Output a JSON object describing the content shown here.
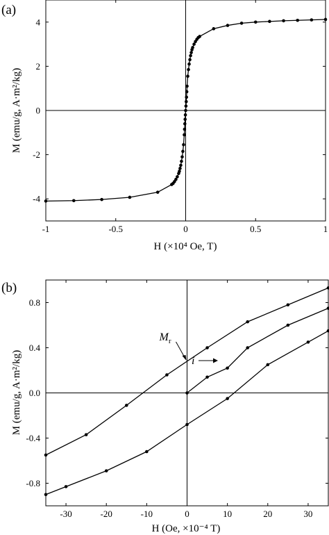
{
  "chart_data": [
    {
      "type": "line",
      "panel_label": "(a)",
      "xlabel": "H (×10⁴ Oe, T)",
      "ylabel": "M (emu/g,  A·m²/kg)",
      "xlim": [
        -1,
        1
      ],
      "ylim": [
        -5,
        5
      ],
      "x_ticks": [
        -1,
        -0.5,
        0,
        0.5,
        1
      ],
      "x_tick_labels": [
        "-1",
        "-0.5",
        "0",
        "0.5",
        "1"
      ],
      "y_ticks": [
        -4,
        -2,
        0,
        2,
        4
      ],
      "y_tick_labels": [
        "-4",
        "-2",
        "0",
        "2",
        "4"
      ],
      "grid": false,
      "series": [
        {
          "x": [
            -1.0,
            -0.8,
            -0.6,
            -0.4,
            -0.2,
            -0.1,
            -0.09,
            -0.08,
            -0.07,
            -0.06,
            -0.05,
            -0.045,
            -0.04,
            -0.035,
            -0.03,
            -0.025,
            -0.02,
            -0.015,
            -0.01,
            -0.008,
            -0.006,
            -0.004,
            -0.002,
            0.0,
            0.002,
            0.004,
            0.006,
            0.008,
            0.01,
            0.015,
            0.02,
            0.025,
            0.03,
            0.035,
            0.04,
            0.045,
            0.05,
            0.06,
            0.07,
            0.08,
            0.09,
            0.1,
            0.2,
            0.3,
            0.4,
            0.5,
            0.6,
            0.7,
            0.8,
            0.9,
            1.0
          ],
          "y": [
            -4.1,
            -4.08,
            -4.03,
            -3.93,
            -3.7,
            -3.35,
            -3.3,
            -3.22,
            -3.12,
            -3.0,
            -2.85,
            -2.75,
            -2.62,
            -2.48,
            -2.3,
            -2.1,
            -1.85,
            -1.55,
            -1.1,
            -0.85,
            -0.6,
            -0.4,
            -0.2,
            0.0,
            0.2,
            0.4,
            0.6,
            0.85,
            1.1,
            1.55,
            1.85,
            2.1,
            2.3,
            2.48,
            2.62,
            2.75,
            2.85,
            3.0,
            3.12,
            3.22,
            3.3,
            3.35,
            3.7,
            3.85,
            3.95,
            4.0,
            4.03,
            4.06,
            4.08,
            4.1,
            4.12
          ]
        }
      ]
    },
    {
      "type": "line",
      "panel_label": "(b)",
      "xlabel": "H (Oe, ×10⁻⁴ T)",
      "ylabel": "M (emu/g,  A·m²/kg)",
      "xlim": [
        -35,
        35
      ],
      "ylim": [
        -1.0,
        1.0
      ],
      "x_ticks": [
        -30,
        -20,
        -10,
        0,
        10,
        20,
        30
      ],
      "x_tick_labels": [
        "-30",
        "-20",
        "-10",
        "0",
        "10",
        "20",
        "30"
      ],
      "y_ticks": [
        -0.8,
        -0.4,
        0.0,
        0.4,
        0.8
      ],
      "y_tick_labels": [
        "-0.8",
        "-0.4",
        "0.0",
        "0.4",
        "0.8"
      ],
      "grid": false,
      "annotations": [
        {
          "text": "Mr",
          "main": "M",
          "sub": "r",
          "target": [
            0,
            0.28
          ]
        },
        {
          "text": "i",
          "target": [
            8,
            0.2
          ]
        }
      ],
      "series": [
        {
          "x": [
            -35,
            -25,
            -15,
            -5,
            5,
            15,
            25,
            35
          ],
          "y": [
            -0.55,
            -0.37,
            -0.11,
            0.16,
            0.4,
            0.63,
            0.78,
            0.93
          ]
        },
        {
          "x": [
            -35,
            -30,
            -20,
            -10,
            0,
            10,
            20,
            30,
            35
          ],
          "y": [
            -0.9,
            -0.83,
            -0.69,
            -0.52,
            -0.28,
            -0.05,
            0.25,
            0.45,
            0.55
          ]
        },
        {
          "x": [
            0,
            5,
            10,
            15,
            25,
            35
          ],
          "y": [
            0.0,
            0.14,
            0.22,
            0.4,
            0.6,
            0.75
          ]
        }
      ]
    }
  ]
}
